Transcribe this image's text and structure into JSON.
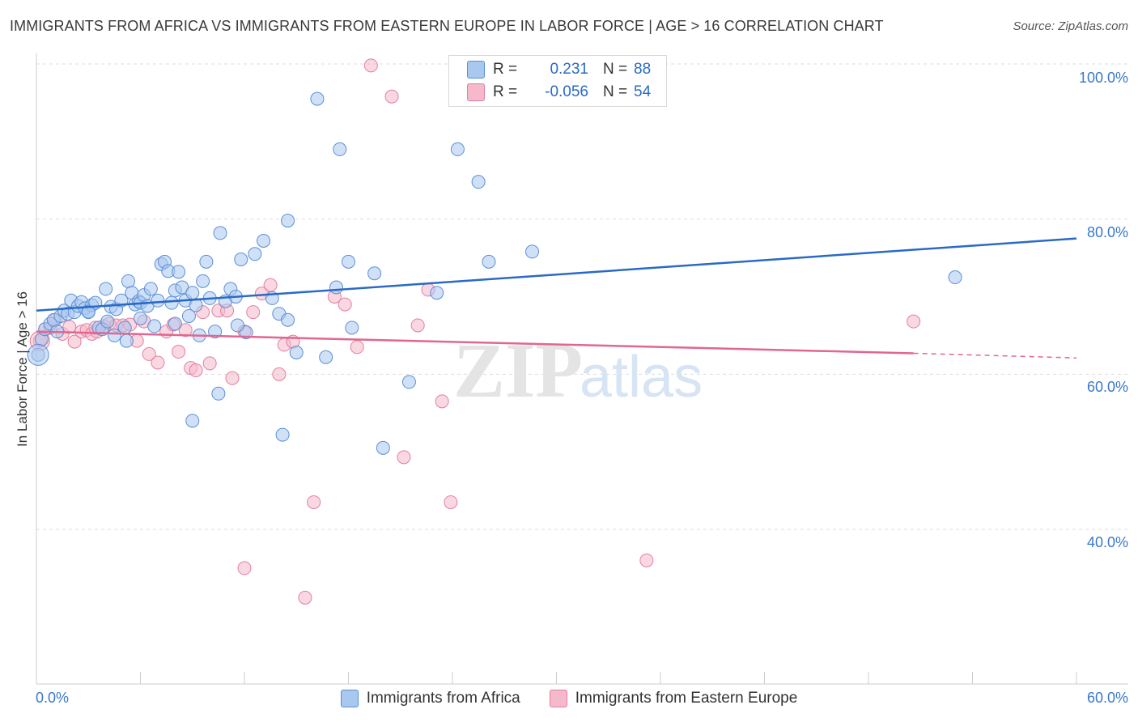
{
  "title": "IMMIGRANTS FROM AFRICA VS IMMIGRANTS FROM EASTERN EUROPE IN LABOR FORCE | AGE > 16 CORRELATION CHART",
  "source": "Source: ZipAtlas.com",
  "watermark": "ZIPatlas",
  "legend": {
    "series1": {
      "r_label": "R =",
      "r_value": "0.231",
      "n_label": "N =",
      "n_value": "88"
    },
    "series2": {
      "r_label": "R =",
      "r_value": "-0.056",
      "n_label": "N =",
      "n_value": "54"
    }
  },
  "colors": {
    "africa_fill": "#a9c8f0",
    "africa_stroke": "#5a8fd6",
    "africa_line": "#2a6ac6",
    "ee_fill": "#f6b8cb",
    "ee_stroke": "#e27fa0",
    "ee_line": "#e0678f",
    "axis_text": "#3a78c9",
    "grid": "#dddddd"
  },
  "chart_data": {
    "type": "scatter",
    "title": "IMMIGRANTS FROM AFRICA VS IMMIGRANTS FROM EASTERN EUROPE IN LABOR FORCE | AGE > 16 CORRELATION CHART",
    "xlabel": "",
    "ylabel": "In Labor Force | Age > 16",
    "xlim": [
      0,
      60
    ],
    "ylim": [
      18,
      102
    ],
    "x_tick_labels": [
      "0.0%",
      "60.0%"
    ],
    "y_ticks": [
      40,
      60,
      80,
      100
    ],
    "y_tick_labels": [
      "40.0%",
      "60.0%",
      "80.0%",
      "100.0%"
    ],
    "legend_placement": "bottom-center",
    "series": [
      {
        "name": "Immigrants from Africa",
        "r": 0.231,
        "n": 88,
        "trend": {
          "x": [
            0,
            60
          ],
          "y": [
            68.2,
            77.5
          ]
        },
        "points": [
          [
            0.1,
            62.5
          ],
          [
            0.3,
            64.5
          ],
          [
            0.5,
            65.8
          ],
          [
            0.8,
            66.5
          ],
          [
            1.0,
            67.0
          ],
          [
            1.2,
            65.5
          ],
          [
            1.4,
            67.5
          ],
          [
            1.6,
            68.2
          ],
          [
            1.8,
            67.8
          ],
          [
            2.0,
            69.5
          ],
          [
            2.2,
            68.0
          ],
          [
            2.4,
            68.8
          ],
          [
            2.6,
            69.3
          ],
          [
            2.8,
            68.5
          ],
          [
            3.0,
            68.1
          ],
          [
            3.2,
            68.9
          ],
          [
            3.4,
            69.2
          ],
          [
            3.6,
            66.0
          ],
          [
            3.8,
            65.8
          ],
          [
            4.0,
            71.0
          ],
          [
            4.3,
            68.7
          ],
          [
            4.5,
            65.0
          ],
          [
            4.6,
            68.4
          ],
          [
            4.9,
            69.5
          ],
          [
            5.1,
            66.0
          ],
          [
            5.3,
            72.0
          ],
          [
            5.5,
            70.5
          ],
          [
            5.7,
            69.0
          ],
          [
            5.9,
            69.4
          ],
          [
            6.0,
            69.2
          ],
          [
            6.2,
            70.2
          ],
          [
            6.4,
            68.8
          ],
          [
            6.6,
            71.0
          ],
          [
            6.8,
            66.2
          ],
          [
            7.0,
            69.5
          ],
          [
            7.2,
            74.2
          ],
          [
            7.4,
            74.5
          ],
          [
            7.6,
            73.3
          ],
          [
            7.8,
            69.2
          ],
          [
            8.0,
            70.8
          ],
          [
            8.2,
            73.2
          ],
          [
            8.4,
            71.2
          ],
          [
            8.6,
            69.5
          ],
          [
            8.8,
            67.5
          ],
          [
            9.0,
            70.5
          ],
          [
            9.2,
            68.9
          ],
          [
            9.4,
            65.0
          ],
          [
            9.6,
            72.0
          ],
          [
            9.8,
            74.5
          ],
          [
            10.0,
            69.8
          ],
          [
            10.3,
            65.5
          ],
          [
            10.6,
            78.2
          ],
          [
            10.9,
            69.4
          ],
          [
            11.2,
            71.0
          ],
          [
            11.5,
            70.0
          ],
          [
            11.8,
            74.8
          ],
          [
            12.1,
            65.4
          ],
          [
            12.6,
            75.5
          ],
          [
            13.1,
            77.2
          ],
          [
            13.6,
            69.8
          ],
          [
            14.0,
            67.8
          ],
          [
            14.5,
            79.8
          ],
          [
            15.0,
            62.8
          ],
          [
            16.2,
            95.5
          ],
          [
            16.7,
            62.2
          ],
          [
            17.5,
            89.0
          ],
          [
            17.3,
            71.2
          ],
          [
            18.0,
            74.5
          ],
          [
            18.2,
            66.0
          ],
          [
            19.5,
            73.0
          ],
          [
            20.0,
            50.5
          ],
          [
            21.5,
            59.0
          ],
          [
            23.1,
            70.5
          ],
          [
            24.3,
            89.0
          ],
          [
            25.5,
            84.8
          ],
          [
            26.1,
            74.5
          ],
          [
            28.6,
            75.8
          ],
          [
            53.0,
            72.5
          ],
          [
            14.2,
            52.2
          ],
          [
            14.5,
            67.0
          ],
          [
            10.5,
            57.5
          ],
          [
            9.0,
            54.0
          ],
          [
            6.0,
            67.2
          ],
          [
            8.0,
            66.5
          ],
          [
            5.2,
            64.3
          ],
          [
            4.1,
            66.8
          ],
          [
            11.6,
            66.3
          ],
          [
            3.0,
            68.0
          ]
        ]
      },
      {
        "name": "Immigrants from Eastern Europe",
        "r": -0.056,
        "n": 54,
        "trend": {
          "x": [
            0,
            50.6
          ],
          "y": [
            65.5,
            62.7
          ]
        },
        "trend_dashed": {
          "x": [
            50.6,
            60
          ],
          "y": [
            62.7,
            62.1
          ]
        },
        "points": [
          [
            0.2,
            64.3
          ],
          [
            0.5,
            65.8
          ],
          [
            0.8,
            66.0
          ],
          [
            1.1,
            67.0
          ],
          [
            1.5,
            65.2
          ],
          [
            1.9,
            66.1
          ],
          [
            2.2,
            64.2
          ],
          [
            2.6,
            65.5
          ],
          [
            2.9,
            65.7
          ],
          [
            3.2,
            65.2
          ],
          [
            3.5,
            65.5
          ],
          [
            3.9,
            66.2
          ],
          [
            4.2,
            66.5
          ],
          [
            4.6,
            66.3
          ],
          [
            5.0,
            66.3
          ],
          [
            5.4,
            66.4
          ],
          [
            5.8,
            64.3
          ],
          [
            6.2,
            66.8
          ],
          [
            6.5,
            62.6
          ],
          [
            7.0,
            61.5
          ],
          [
            7.5,
            65.5
          ],
          [
            7.9,
            66.4
          ],
          [
            8.2,
            62.9
          ],
          [
            8.6,
            65.7
          ],
          [
            8.9,
            60.8
          ],
          [
            9.2,
            60.5
          ],
          [
            9.6,
            68.0
          ],
          [
            10.0,
            61.4
          ],
          [
            10.5,
            68.2
          ],
          [
            11.0,
            68.2
          ],
          [
            11.3,
            59.5
          ],
          [
            12.0,
            65.5
          ],
          [
            12.5,
            68.0
          ],
          [
            13.0,
            70.4
          ],
          [
            13.5,
            71.5
          ],
          [
            14.0,
            60.0
          ],
          [
            14.3,
            63.8
          ],
          [
            14.8,
            64.2
          ],
          [
            15.5,
            31.2
          ],
          [
            16.0,
            43.5
          ],
          [
            17.2,
            70.0
          ],
          [
            17.8,
            69.0
          ],
          [
            18.5,
            63.5
          ],
          [
            19.3,
            99.8
          ],
          [
            20.5,
            95.8
          ],
          [
            21.2,
            49.3
          ],
          [
            22.0,
            66.3
          ],
          [
            22.6,
            70.9
          ],
          [
            23.4,
            56.5
          ],
          [
            23.9,
            43.5
          ],
          [
            35.2,
            36.0
          ],
          [
            50.6,
            66.8
          ],
          [
            12.0,
            35.0
          ],
          [
            3.4,
            66.0
          ]
        ]
      }
    ]
  },
  "bottom_legend": {
    "africa": "Immigrants from Africa",
    "ee": "Immigrants from Eastern Europe"
  },
  "axis_labels": {
    "ylabel": "In Labor Force | Age > 16",
    "x_min": "0.0%",
    "x_max": "60.0%",
    "y100": "100.0%",
    "y80": "80.0%",
    "y60": "60.0%",
    "y40": "40.0%"
  }
}
